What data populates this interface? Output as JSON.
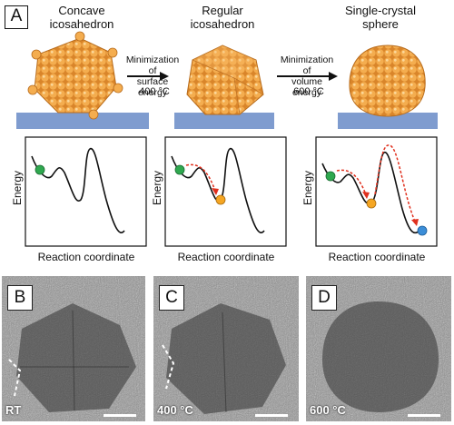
{
  "panel_a": {
    "label": "A",
    "stages": [
      {
        "title_line1": "Concave",
        "title_line2": "icosahedron"
      },
      {
        "title_line1": "Regular",
        "title_line2": "icosahedron"
      },
      {
        "title_line1": "Single-crystal",
        "title_line2": "sphere"
      }
    ],
    "steps": [
      {
        "line1": "Minimization of",
        "line2": "surface energy",
        "temperature": "400 °C"
      },
      {
        "line1": "Minimization of",
        "line2": "volume energy",
        "temperature": "600 °C"
      }
    ],
    "plots": [
      {
        "ylabel": "Energy",
        "xlabel": "Reaction coordinate"
      },
      {
        "ylabel": "Energy",
        "xlabel": "Reaction coordinate"
      },
      {
        "ylabel": "Energy",
        "xlabel": "Reaction coordinate"
      }
    ],
    "colors": {
      "particle": "#f0a23a",
      "substrate": "#7f9ccf",
      "green": "#2fa84f",
      "orange": "#f5a623",
      "blue": "#3b8ed8",
      "arrow": "#e0301e"
    }
  },
  "tem_panels": [
    {
      "label": "B",
      "temperature": "RT"
    },
    {
      "label": "C",
      "temperature": "400 °C"
    },
    {
      "label": "D",
      "temperature": "600 °C"
    }
  ]
}
